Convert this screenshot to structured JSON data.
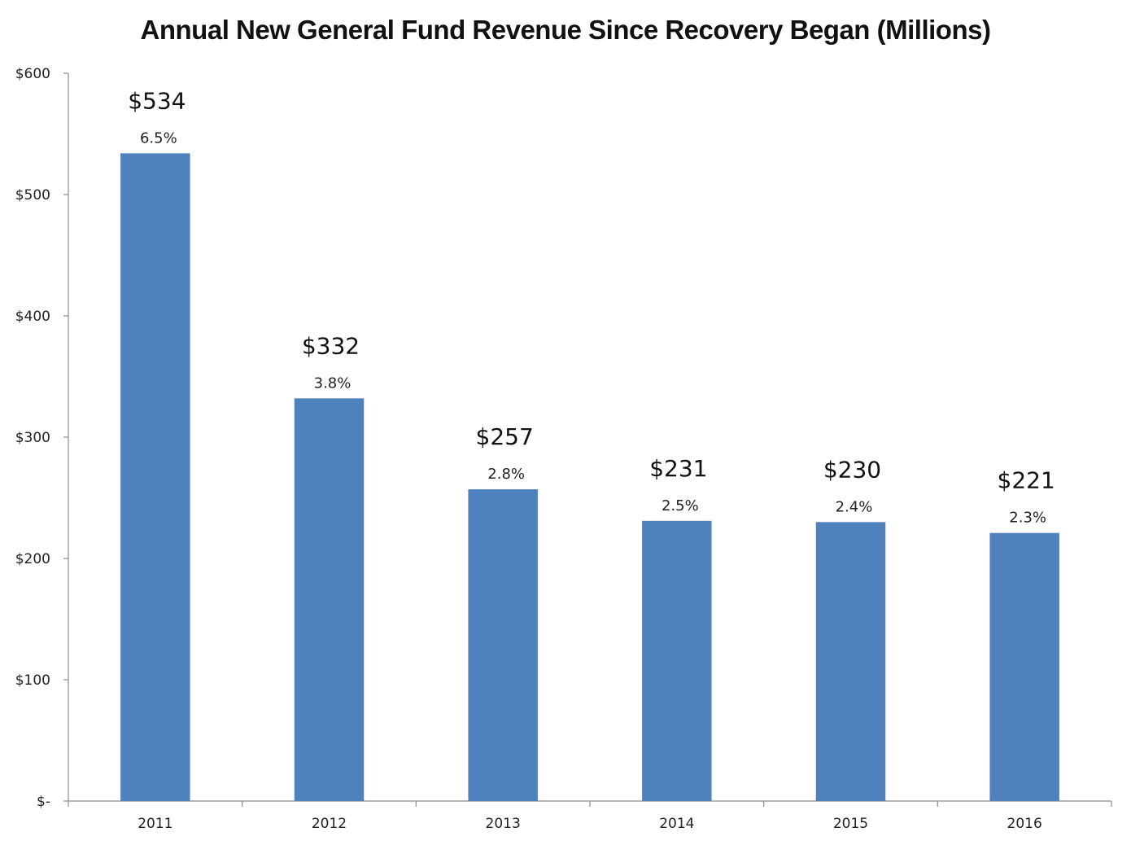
{
  "chart_data": {
    "type": "bar",
    "title": "Annual New General Fund Revenue Since Recovery Began (Millions)",
    "xlabel": "",
    "ylabel": "",
    "categories": [
      "2011",
      "2012",
      "2013",
      "2014",
      "2015",
      "2016"
    ],
    "values": [
      534,
      332,
      257,
      231,
      230,
      221
    ],
    "value_labels": [
      "$534",
      "$332",
      "$257",
      "$231",
      "$230",
      "$221"
    ],
    "percent_labels": [
      "6.5%",
      "3.8%",
      "2.8%",
      "2.5%",
      "2.4%",
      "2.3%"
    ],
    "ylim": [
      0,
      600
    ],
    "yticks": [
      0,
      100,
      200,
      300,
      400,
      500,
      600
    ],
    "ytick_labels": [
      "$-",
      "$100",
      "$200",
      "$300",
      "$400",
      "$500",
      "$600"
    ],
    "grid": false,
    "legend": "none",
    "bar_color": "#4f81bd"
  }
}
